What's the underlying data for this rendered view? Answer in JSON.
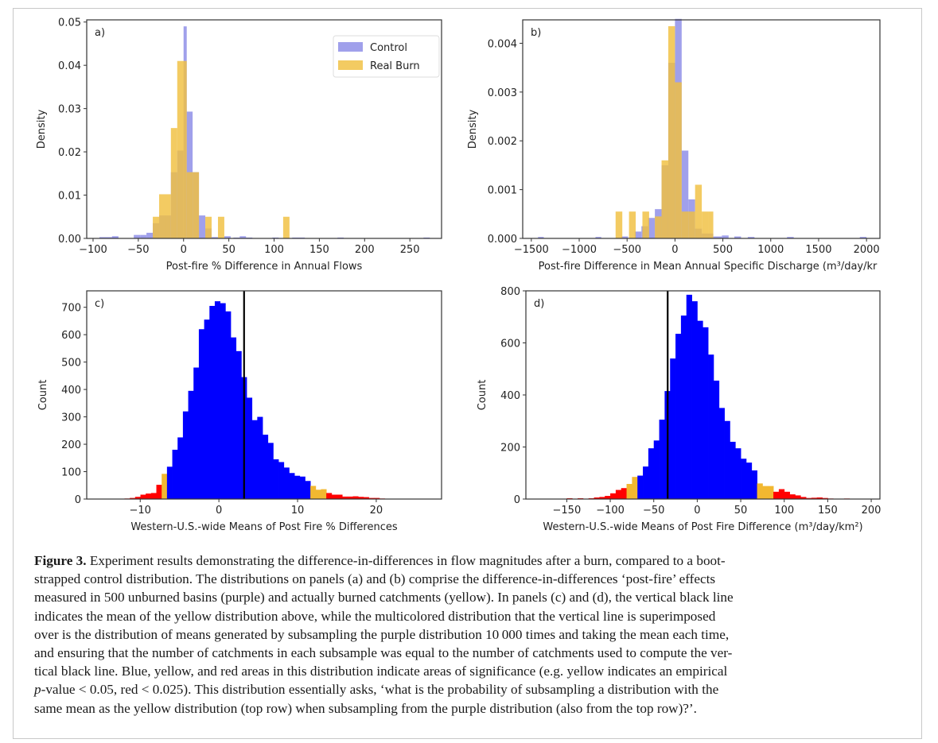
{
  "figure": {
    "colors": {
      "control": "#8f8fe8",
      "real_burn": "#f0c040",
      "overlap": "#d9b04a",
      "blue": "#0000ff",
      "yellow": "#f2b830",
      "red": "#ff0000",
      "mean_line": "#000000"
    }
  },
  "chart_data": [
    {
      "id": "a",
      "type": "bar",
      "panel_label": "a)",
      "title": "",
      "xlabel": "Post-fire % Difference in Annual Flows",
      "ylabel": "Density",
      "xlim": [
        -107,
        285
      ],
      "ylim": [
        0,
        0.0505
      ],
      "xticks": [
        -100,
        -50,
        0,
        50,
        100,
        150,
        200,
        250
      ],
      "xtick_labels": [
        "−100",
        "−50",
        "0",
        "50",
        "100",
        "150",
        "200",
        "250"
      ],
      "yticks": [
        0,
        0.01,
        0.02,
        0.03,
        0.04,
        0.05
      ],
      "ytick_labels": [
        "0.00",
        "0.01",
        "0.02",
        "0.03",
        "0.04",
        "0.05"
      ],
      "legend": {
        "position": "top-right",
        "entries": [
          "Control",
          "Real Burn"
        ]
      },
      "series": [
        {
          "name": "Control",
          "bins": [
            [
              -93,
              -72,
              0.0003
            ],
            [
              -79,
              -72,
              0.0005
            ],
            [
              -55,
              -48,
              0.0008
            ],
            [
              -48,
              -41,
              0.0008
            ],
            [
              -41,
              -34,
              0.0013
            ],
            [
              -34,
              -27,
              0.0035
            ],
            [
              -27,
              -20,
              0.0053
            ],
            [
              -20,
              -14,
              0.0053
            ],
            [
              -14,
              -7,
              0.0153
            ],
            [
              -7,
              0,
              0.0203
            ],
            [
              0,
              3.5,
              0.049
            ],
            [
              3.5,
              10,
              0.0293
            ],
            [
              10,
              17,
              0.0153
            ],
            [
              17,
              24,
              0.0053
            ],
            [
              24,
              31,
              0.0023
            ],
            [
              31,
              38,
              0.0003
            ],
            [
              45,
              52,
              0.0005
            ],
            [
              55,
              62,
              0.0002
            ],
            [
              62,
              69,
              0.0005
            ],
            [
              69,
              76,
              0.0002
            ],
            [
              98,
              105,
              0.0002
            ],
            [
              120,
              134,
              0.0002
            ],
            [
              170,
              177,
              0.0002
            ],
            [
              265,
              272,
              0.0002
            ]
          ]
        },
        {
          "name": "Real Burn",
          "bins": [
            [
              -34,
              -27,
              0.005
            ],
            [
              -27,
              -14,
              0.0102
            ],
            [
              -14,
              -7,
              0.0255
            ],
            [
              -7,
              3.5,
              0.041
            ],
            [
              3.5,
              10,
              0.0153
            ],
            [
              10,
              17,
              0.0153
            ],
            [
              24,
              31,
              0.005
            ],
            [
              38,
              45,
              0.005
            ],
            [
              110,
              117,
              0.005
            ]
          ]
        }
      ]
    },
    {
      "id": "b",
      "type": "bar",
      "panel_label": "b)",
      "title": "",
      "xlabel": "Post-fire Difference in Mean Annual Specific Discharge (m³/day/kr",
      "ylabel": "Density",
      "xlim": [
        -1590,
        2140
      ],
      "ylim": [
        0,
        0.00448
      ],
      "xticks": [
        -1500,
        -1000,
        -500,
        0,
        500,
        1000,
        1500,
        2000
      ],
      "xtick_labels": [
        "−1500",
        "−1000",
        "−500",
        "0",
        "500",
        "1000",
        "1500",
        "2000"
      ],
      "yticks": [
        0,
        0.001,
        0.002,
        0.003,
        0.004
      ],
      "ytick_labels": [
        "0.000",
        "0.001",
        "0.002",
        "0.003",
        "0.004"
      ],
      "series": [
        {
          "name": "Control",
          "bins": [
            [
              -1430,
              -1370,
              3e-05
            ],
            [
              -830,
              -770,
              3e-05
            ],
            [
              -560,
              -490,
              4e-05
            ],
            [
              -420,
              -350,
              0.00014
            ],
            [
              -350,
              -280,
              0.00025
            ],
            [
              -280,
              -210,
              0.00042
            ],
            [
              -210,
              -140,
              0.0006
            ],
            [
              -140,
              -70,
              0.0015
            ],
            [
              -70,
              0,
              0.0036
            ],
            [
              0,
              70,
              0.0045
            ],
            [
              70,
              140,
              0.0018
            ],
            [
              140,
              210,
              0.0008
            ],
            [
              210,
              280,
              0.0002
            ],
            [
              280,
              400,
              0.0001
            ],
            [
              400,
              490,
              4e-05
            ],
            [
              490,
              560,
              6e-05
            ],
            [
              620,
              690,
              4e-05
            ],
            [
              760,
              830,
              3e-05
            ],
            [
              1170,
              1240,
              3e-05
            ],
            [
              1930,
              2000,
              3e-05
            ]
          ]
        },
        {
          "name": "Real Burn",
          "bins": [
            [
              -620,
              -550,
              0.00055
            ],
            [
              -480,
              -410,
              0.00055
            ],
            [
              -340,
              -270,
              0.00055
            ],
            [
              -210,
              -140,
              0.00045
            ],
            [
              -140,
              -70,
              0.0016
            ],
            [
              -70,
              0,
              0.00435
            ],
            [
              0,
              70,
              0.0032
            ],
            [
              70,
              140,
              0.00055
            ],
            [
              140,
              210,
              0.00055
            ],
            [
              210,
              280,
              0.0011
            ],
            [
              280,
              350,
              0.00055
            ],
            [
              350,
              400,
              0.00055
            ]
          ]
        }
      ]
    },
    {
      "id": "c",
      "type": "bar",
      "panel_label": "c)",
      "title": "",
      "xlabel": "Western-U.S.-wide Means of Post Fire % Differences",
      "ylabel": "Count",
      "xlim": [
        -16.8,
        28.3
      ],
      "ylim": [
        0,
        760
      ],
      "xticks": [
        -10,
        0,
        10,
        20
      ],
      "xtick_labels": [
        "−10",
        "0",
        "10",
        "20"
      ],
      "yticks": [
        0,
        100,
        200,
        300,
        400,
        500,
        600,
        700
      ],
      "ytick_labels": [
        "0",
        "100",
        "200",
        "300",
        "400",
        "500",
        "600",
        "700"
      ],
      "bin_start": -12.0,
      "bin_width": 0.675,
      "counts": [
        2,
        4,
        8,
        16,
        20,
        22,
        52,
        92,
        118,
        180,
        225,
        320,
        395,
        480,
        620,
        655,
        705,
        722,
        715,
        685,
        590,
        540,
        445,
        370,
        288,
        300,
        235,
        205,
        145,
        135,
        115,
        95,
        85,
        82,
        66,
        48,
        34,
        36,
        22,
        16,
        16,
        9,
        9,
        10,
        8,
        7,
        4,
        4,
        2,
        1
      ],
      "colors": [
        "red",
        "red",
        "red",
        "red",
        "red",
        "red",
        "red",
        "yellow",
        "blue",
        "blue",
        "blue",
        "blue",
        "blue",
        "blue",
        "blue",
        "blue",
        "blue",
        "blue",
        "blue",
        "blue",
        "blue",
        "blue",
        "blue",
        "blue",
        "blue",
        "blue",
        "blue",
        "blue",
        "blue",
        "blue",
        "blue",
        "blue",
        "blue",
        "blue",
        "blue",
        "yellow",
        "yellow",
        "yellow",
        "red",
        "red",
        "red",
        "red",
        "red",
        "red",
        "red",
        "red",
        "red",
        "red",
        "red",
        "red"
      ],
      "mean_line_x": 3.2
    },
    {
      "id": "d",
      "type": "bar",
      "panel_label": "d)",
      "title": "",
      "xlabel": "Western-U.S.-wide Means of Post Fire Difference (m³/day/km²)",
      "ylabel": "Count",
      "xlim": [
        -197,
        210
      ],
      "ylim": [
        0,
        800
      ],
      "xticks": [
        -150,
        -100,
        -50,
        0,
        50,
        100,
        150,
        200
      ],
      "xtick_labels": [
        "−150",
        "−100",
        "−50",
        "0",
        "50",
        "100",
        "150",
        "200"
      ],
      "yticks": [
        0,
        200,
        400,
        600,
        800
      ],
      "ytick_labels": [
        "0",
        "200",
        "400",
        "600",
        "800"
      ],
      "bin_start": -150,
      "bin_width": 6.25,
      "counts": [
        3,
        1,
        3,
        1,
        3,
        6,
        8,
        12,
        22,
        35,
        42,
        58,
        85,
        90,
        125,
        195,
        225,
        305,
        415,
        540,
        635,
        705,
        785,
        760,
        685,
        660,
        555,
        455,
        350,
        300,
        220,
        195,
        155,
        140,
        110,
        60,
        50,
        50,
        28,
        38,
        28,
        18,
        14,
        8,
        4,
        5,
        6,
        4,
        2,
        1,
        1,
        2,
        1
      ],
      "colors": [
        "red",
        "red",
        "red",
        "red",
        "red",
        "red",
        "red",
        "red",
        "red",
        "red",
        "red",
        "yellow",
        "yellow",
        "blue",
        "blue",
        "blue",
        "blue",
        "blue",
        "blue",
        "blue",
        "blue",
        "blue",
        "blue",
        "blue",
        "blue",
        "blue",
        "blue",
        "blue",
        "blue",
        "blue",
        "blue",
        "blue",
        "blue",
        "blue",
        "blue",
        "yellow",
        "yellow",
        "yellow",
        "red",
        "red",
        "red",
        "red",
        "red",
        "red",
        "red",
        "red",
        "red",
        "red",
        "red",
        "red",
        "red",
        "red",
        "red"
      ],
      "mean_line_x": -34
    }
  ],
  "caption": {
    "figure_label": "Figure 3.",
    "lines": [
      " Experiment results demonstrating the difference-in-differences in flow magnitudes after a burn, compared to a boot-",
      "strapped control distribution. The distributions on panels (a) and (b) comprise the difference-in-differences ‘post-fire’ effects",
      "measured in 500 unburned basins (purple) and actually burned catchments (yellow). In panels (c) and (d), the vertical black line",
      "indicates the mean of the yellow distribution above, while the multicolored distribution that the vertical line is superimposed",
      "over is the distribution of means generated by subsampling the purple distribution 10 000 times and taking the mean each time,",
      "and ensuring that the number of catchments in each subsample was equal to the number of catchments used to compute the ver-",
      "tical black line. Blue, yellow, and red areas in this distribution indicate areas of significance (e.g. yellow indicates an empirical",
      "-value < 0.05, red < 0.025). This distribution essentially asks, ‘what is the probability of subsampling a distribution with the",
      "same mean as the yellow distribution (top row) when subsampling from the purple distribution (also from the top row)?’."
    ],
    "italic_p": "p"
  }
}
